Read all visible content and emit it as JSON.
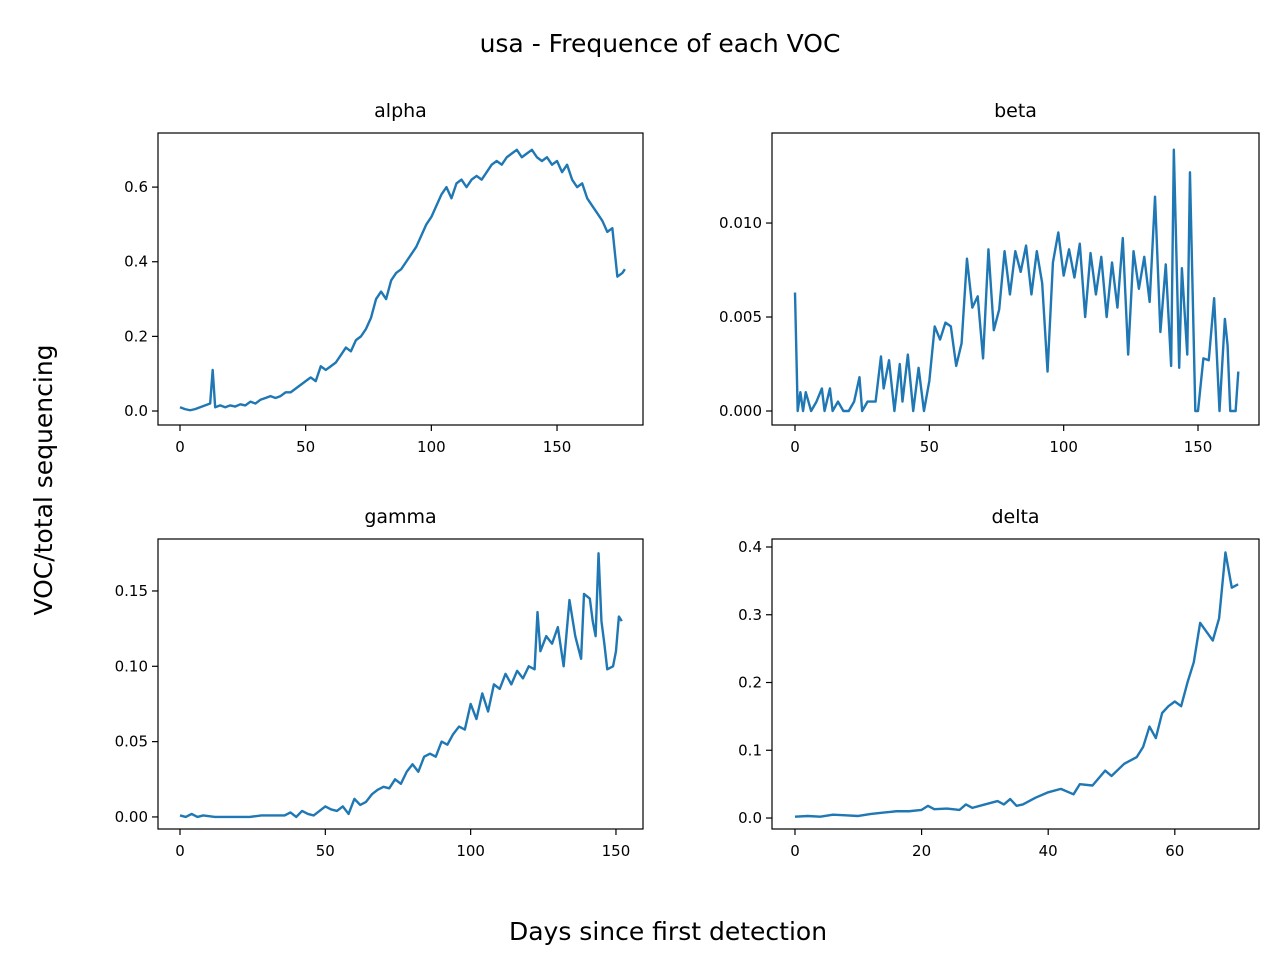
{
  "figure": {
    "title": "usa - Frequence of each VOC",
    "xlabel": "Days since first detection",
    "ylabel": "VOC/total sequencing"
  },
  "chart_data": [
    {
      "type": "line",
      "title": "alpha",
      "color": "#1f77b4",
      "x": [
        0,
        2,
        4,
        6,
        8,
        10,
        12,
        13,
        14,
        16,
        18,
        20,
        22,
        24,
        26,
        28,
        30,
        32,
        34,
        36,
        38,
        40,
        42,
        44,
        46,
        48,
        50,
        52,
        54,
        56,
        58,
        60,
        62,
        64,
        66,
        68,
        70,
        72,
        74,
        76,
        78,
        80,
        82,
        84,
        86,
        88,
        90,
        92,
        94,
        96,
        98,
        100,
        102,
        104,
        106,
        108,
        110,
        112,
        114,
        116,
        118,
        120,
        122,
        124,
        126,
        128,
        130,
        132,
        134,
        136,
        138,
        140,
        142,
        144,
        146,
        148,
        150,
        152,
        154,
        156,
        158,
        160,
        162,
        164,
        166,
        168,
        170,
        172,
        174,
        176,
        177
      ],
      "values": [
        0.01,
        0.005,
        0.002,
        0.005,
        0.01,
        0.015,
        0.02,
        0.11,
        0.01,
        0.015,
        0.01,
        0.015,
        0.012,
        0.018,
        0.015,
        0.025,
        0.02,
        0.03,
        0.035,
        0.04,
        0.035,
        0.04,
        0.05,
        0.05,
        0.06,
        0.07,
        0.08,
        0.09,
        0.08,
        0.12,
        0.11,
        0.12,
        0.13,
        0.15,
        0.17,
        0.16,
        0.19,
        0.2,
        0.22,
        0.25,
        0.3,
        0.32,
        0.3,
        0.35,
        0.37,
        0.38,
        0.4,
        0.42,
        0.44,
        0.47,
        0.5,
        0.52,
        0.55,
        0.58,
        0.6,
        0.57,
        0.61,
        0.62,
        0.6,
        0.62,
        0.63,
        0.62,
        0.64,
        0.66,
        0.67,
        0.66,
        0.68,
        0.69,
        0.7,
        0.68,
        0.69,
        0.7,
        0.68,
        0.67,
        0.68,
        0.66,
        0.67,
        0.64,
        0.66,
        0.62,
        0.6,
        0.61,
        0.57,
        0.55,
        0.53,
        0.51,
        0.48,
        0.49,
        0.36,
        0.37,
        0.38
      ],
      "xlim": [
        -8.75,
        184.2
      ],
      "ylim": [
        -0.0375,
        0.745
      ],
      "xticks": [
        0,
        50,
        100,
        150
      ],
      "yticks": [
        {
          "value": 0,
          "label": "0.0"
        },
        0.2,
        0.4,
        0.6
      ]
    },
    {
      "type": "line",
      "title": "beta",
      "color": "#1f77b4",
      "x": [
        0,
        1,
        2,
        3,
        4,
        6,
        8,
        10,
        11,
        13,
        14,
        16,
        18,
        20,
        22,
        24,
        25,
        27,
        30,
        32,
        33,
        35,
        37,
        39,
        40,
        42,
        44,
        46,
        48,
        50,
        52,
        54,
        56,
        58,
        60,
        62,
        64,
        66,
        68,
        70,
        72,
        74,
        76,
        78,
        80,
        82,
        84,
        86,
        88,
        90,
        92,
        94,
        96,
        98,
        100,
        102,
        104,
        106,
        108,
        110,
        112,
        114,
        116,
        118,
        120,
        122,
        124,
        126,
        128,
        130,
        132,
        134,
        136,
        138,
        140,
        141,
        143,
        144,
        146,
        147,
        149,
        150,
        152,
        154,
        156,
        158,
        160,
        161,
        162,
        164,
        165
      ],
      "values": [
        0.0063,
        0,
        0.001,
        0,
        0.001,
        0,
        0.0005,
        0.0012,
        0,
        0.0012,
        0,
        0.0005,
        0,
        0,
        0.0005,
        0.0018,
        0,
        0.0005,
        0.0005,
        0.0029,
        0.0012,
        0.0027,
        0,
        0.0025,
        0.0005,
        0.003,
        0,
        0.0023,
        0,
        0.0016,
        0.0045,
        0.0038,
        0.0047,
        0.0045,
        0.0024,
        0.0036,
        0.0081,
        0.0055,
        0.0061,
        0.0028,
        0.0086,
        0.0043,
        0.0054,
        0.0085,
        0.0062,
        0.0085,
        0.0074,
        0.0088,
        0.0062,
        0.0085,
        0.0068,
        0.0021,
        0.0079,
        0.0095,
        0.0072,
        0.0086,
        0.0071,
        0.0089,
        0.005,
        0.0084,
        0.0062,
        0.0082,
        0.005,
        0.0079,
        0.0055,
        0.0092,
        0.003,
        0.0085,
        0.0065,
        0.0082,
        0.0058,
        0.0114,
        0.0042,
        0.0078,
        0.0024,
        0.0139,
        0.0023,
        0.0076,
        0.003,
        0.0127,
        0,
        0,
        0.0028,
        0.0027,
        0.006,
        0,
        0.0049,
        0.0035,
        0,
        0,
        0.0021
      ],
      "xlim": [
        -8.56,
        172.7
      ],
      "ylim": [
        -0.000745,
        0.01479
      ],
      "xticks": [
        0,
        50,
        100,
        150
      ],
      "yticks": [
        {
          "value": 0,
          "label": "0.000"
        },
        0.005,
        {
          "value": 0.01,
          "label": "0.010"
        }
      ]
    },
    {
      "type": "line",
      "title": "gamma",
      "color": "#1f77b4",
      "x": [
        0,
        2,
        4,
        6,
        8,
        12,
        16,
        20,
        24,
        28,
        32,
        36,
        38,
        40,
        42,
        44,
        46,
        48,
        50,
        52,
        54,
        56,
        58,
        60,
        62,
        64,
        66,
        68,
        70,
        72,
        74,
        76,
        78,
        80,
        82,
        84,
        86,
        88,
        90,
        92,
        94,
        96,
        98,
        100,
        102,
        104,
        106,
        108,
        110,
        112,
        114,
        116,
        118,
        120,
        122,
        123,
        124,
        126,
        128,
        130,
        132,
        134,
        136,
        138,
        139,
        141,
        142,
        143,
        144,
        145,
        146,
        147,
        149,
        150,
        151,
        152
      ],
      "values": [
        0.001,
        0,
        0.002,
        0,
        0.001,
        0,
        0,
        0,
        0,
        0.001,
        0.001,
        0.001,
        0.003,
        0,
        0.004,
        0.002,
        0.001,
        0.004,
        0.007,
        0.005,
        0.004,
        0.007,
        0.002,
        0.012,
        0.008,
        0.01,
        0.015,
        0.018,
        0.02,
        0.019,
        0.025,
        0.022,
        0.03,
        0.035,
        0.03,
        0.04,
        0.042,
        0.04,
        0.05,
        0.048,
        0.055,
        0.06,
        0.058,
        0.075,
        0.065,
        0.082,
        0.07,
        0.088,
        0.085,
        0.095,
        0.088,
        0.097,
        0.092,
        0.1,
        0.098,
        0.136,
        0.11,
        0.12,
        0.115,
        0.126,
        0.1,
        0.144,
        0.12,
        0.105,
        0.148,
        0.145,
        0.13,
        0.12,
        0.175,
        0.13,
        0.115,
        0.098,
        0.1,
        0.11,
        0.133,
        0.13
      ],
      "xlim": [
        -7.57,
        159.3
      ],
      "ylim": [
        -0.008,
        0.1845
      ],
      "xticks": [
        0,
        50,
        100,
        150
      ],
      "yticks": [
        {
          "value": 0,
          "label": "0.00"
        },
        0.05,
        {
          "value": 0.1,
          "label": "0.10"
        },
        0.15
      ]
    },
    {
      "type": "line",
      "title": "delta",
      "color": "#1f77b4",
      "x": [
        0,
        2,
        4,
        6,
        8,
        10,
        12,
        14,
        16,
        18,
        20,
        21,
        22,
        24,
        26,
        27,
        28,
        30,
        32,
        33,
        34,
        35,
        36,
        38,
        40,
        42,
        44,
        45,
        47,
        49,
        50,
        52,
        54,
        55,
        56,
        57,
        58,
        59,
        60,
        61,
        62,
        63,
        64,
        65,
        66,
        67,
        68,
        69,
        70
      ],
      "values": [
        0.002,
        0.003,
        0.002,
        0.005,
        0.004,
        0.003,
        0.006,
        0.008,
        0.01,
        0.01,
        0.012,
        0.018,
        0.013,
        0.014,
        0.012,
        0.02,
        0.015,
        0.02,
        0.025,
        0.02,
        0.028,
        0.018,
        0.02,
        0.03,
        0.038,
        0.043,
        0.035,
        0.05,
        0.048,
        0.07,
        0.062,
        0.08,
        0.09,
        0.105,
        0.135,
        0.118,
        0.155,
        0.165,
        0.172,
        0.165,
        0.2,
        0.23,
        0.288,
        0.275,
        0.262,
        0.295,
        0.392,
        0.34,
        0.345
      ],
      "xlim": [
        -3.63,
        73.3
      ],
      "ylim": [
        -0.0162,
        0.4118
      ],
      "xticks": [
        0,
        20,
        40,
        60
      ],
      "yticks": [
        {
          "value": 0,
          "label": "0.0"
        },
        0.1,
        0.2,
        0.3,
        0.4
      ]
    }
  ]
}
